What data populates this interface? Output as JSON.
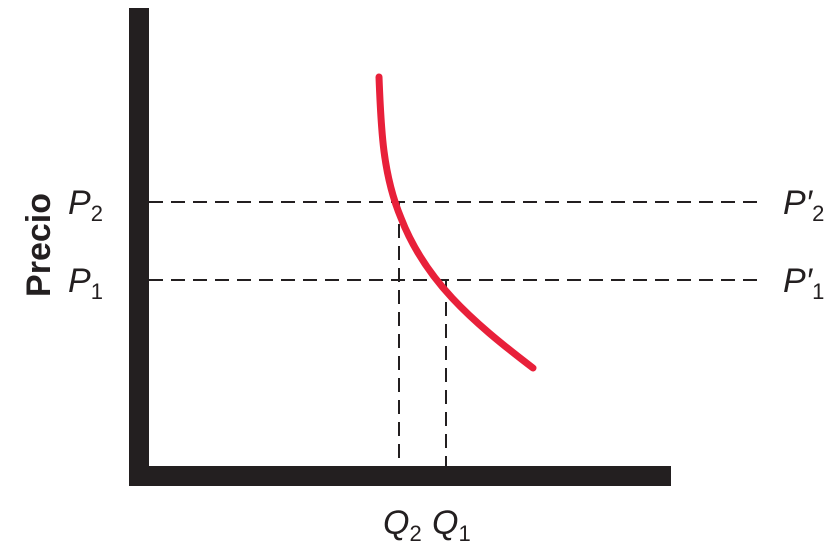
{
  "diagram": {
    "y_axis_label": "Precio",
    "price_levels": [
      {
        "id": "p2",
        "left_base": "P",
        "left_sub": "2",
        "right_base": "P′",
        "right_sub": "2"
      },
      {
        "id": "p1",
        "left_base": "P",
        "left_sub": "1",
        "right_base": "P′",
        "right_sub": "1"
      }
    ],
    "quantity_levels": [
      {
        "id": "q2",
        "base": "Q",
        "sub": "2"
      },
      {
        "id": "q1",
        "base": "Q",
        "sub": "1"
      }
    ],
    "colors": {
      "axes": "#231f20",
      "curve": "#e8203a",
      "guides": "#231f20"
    }
  }
}
